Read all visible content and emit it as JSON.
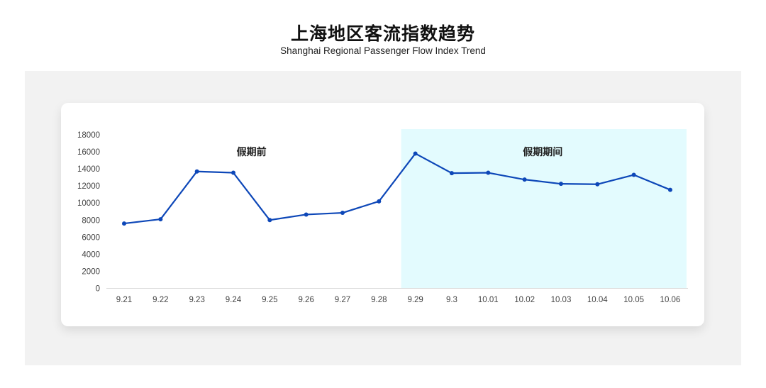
{
  "title": "上海地区客流指数趋势",
  "subtitle": "Shanghai Regional Passenger Flow Index Trend",
  "chart_data": {
    "type": "line",
    "categories": [
      "9.21",
      "9.22",
      "9.23",
      "9.24",
      "9.25",
      "9.26",
      "9.27",
      "9.28",
      "9.29",
      "9.3",
      "10.01",
      "10.02",
      "10.03",
      "10.04",
      "10.05",
      "10.06"
    ],
    "values": [
      7600,
      8100,
      13700,
      13550,
      8000,
      8650,
      8850,
      10200,
      15800,
      13500,
      13550,
      12750,
      12250,
      12200,
      13300,
      11550
    ],
    "ylim": [
      0,
      18000
    ],
    "yticks": [
      0,
      2000,
      4000,
      6000,
      8000,
      10000,
      12000,
      14000,
      16000,
      18000
    ],
    "grid": false,
    "annotations": [
      {
        "text": "假期前",
        "range": [
          "9.21",
          "9.28"
        ]
      },
      {
        "text": "假期期间",
        "range": [
          "9.29",
          "10.06"
        ],
        "shaded": true
      }
    ],
    "colors": {
      "line": "#0d47b8",
      "shade": "#e3fbfe"
    }
  }
}
